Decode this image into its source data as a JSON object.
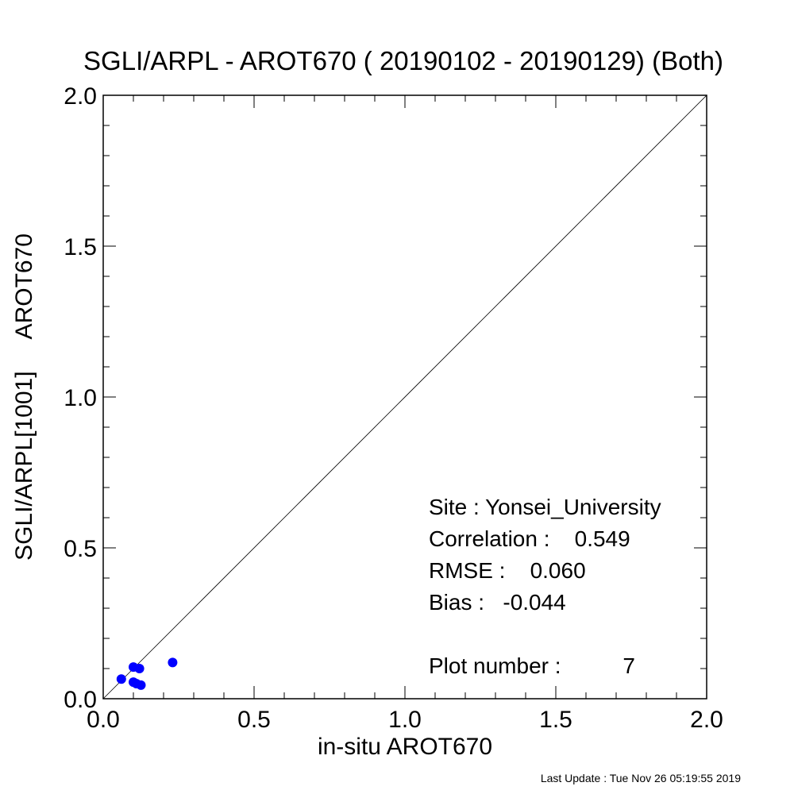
{
  "chart_data": {
    "type": "scatter",
    "title": "SGLI/ARPL - AROT670 ( 20190102 - 20190129) (Both)",
    "xlabel": "in-situ AROT670",
    "ylabel": "SGLI/ARPL[1001]     AROT670",
    "xlim": [
      0.0,
      2.0
    ],
    "ylim": [
      0.0,
      2.0
    ],
    "x_ticks": [
      "0.0",
      "0.5",
      "1.0",
      "1.5",
      "2.0"
    ],
    "y_ticks": [
      "0.0",
      "0.5",
      "1.0",
      "1.5",
      "2.0"
    ],
    "reference_line": "1:1",
    "grid": false,
    "point_color": "#0000ff",
    "series": [
      {
        "points": [
          {
            "x": 0.06,
            "y": 0.065
          },
          {
            "x": 0.1,
            "y": 0.105
          },
          {
            "x": 0.12,
            "y": 0.1
          },
          {
            "x": 0.1,
            "y": 0.055
          },
          {
            "x": 0.11,
            "y": 0.05
          },
          {
            "x": 0.125,
            "y": 0.045
          },
          {
            "x": 0.23,
            "y": 0.12
          }
        ]
      }
    ],
    "annotations": {
      "site": "Site : Yonsei_University",
      "correlation": "Correlation :    0.549",
      "rmse": "RMSE :    0.060",
      "bias": "Bias :   -0.044",
      "plot_number": "Plot number :          7"
    }
  },
  "footer": {
    "last_update": "Last Update : Tue Nov 26 05:19:55 2019"
  }
}
